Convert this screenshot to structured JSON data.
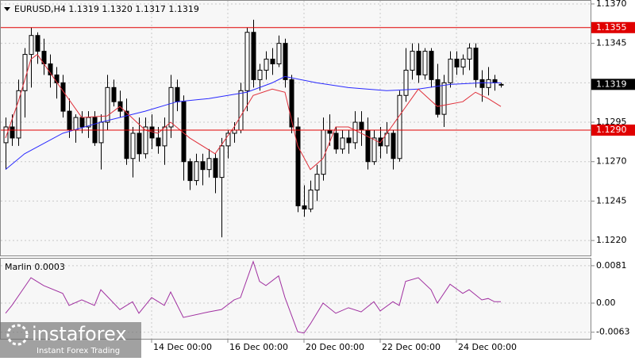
{
  "chart_data": [
    {
      "type": "candlestick",
      "title": "EURUSD,H4  1.1319 1.1320 1.1317 1.1319",
      "categories": [
        null,
        null,
        null,
        null,
        null,
        null,
        null,
        null,
        null,
        null,
        null,
        null,
        null,
        null,
        null,
        null,
        null,
        null,
        null,
        null,
        null,
        null,
        null,
        "14 Dec 00:00",
        null,
        null,
        null,
        null,
        null,
        null,
        null,
        null,
        null,
        null,
        null,
        "16 Dec 00:00",
        null,
        null,
        null,
        null,
        null,
        null,
        null,
        null,
        null,
        null,
        null,
        "20 Dec 00:00",
        null,
        null,
        null,
        null,
        null,
        null,
        null,
        null,
        null,
        null,
        null,
        "22 Dec 00:00",
        null,
        null,
        null,
        null,
        null,
        null,
        null,
        null,
        null,
        null,
        null,
        "24 Dec 00:00",
        null,
        null,
        null,
        null,
        null,
        null,
        null
      ],
      "open": [
        1.1282,
        1.1292,
        1.1285,
        1.1315,
        1.1338,
        1.135,
        1.134,
        1.1332,
        1.1325,
        1.132,
        1.1302,
        1.129,
        1.1298,
        1.1292,
        1.1298,
        1.1282,
        1.1295,
        1.1317,
        1.1308,
        1.1302,
        1.1272,
        1.1288,
        1.1275,
        1.1292,
        1.1285,
        1.128,
        1.1292,
        1.1317,
        1.1308,
        1.127,
        1.1258,
        1.127,
        1.1265,
        1.1272,
        1.126,
        1.128,
        1.1288,
        1.129,
        1.1315,
        1.1352,
        1.1322,
        1.1328,
        1.1335,
        1.1332,
        1.1345,
        1.1322,
        1.1292,
        1.1242,
        1.124,
        1.1252,
        1.1262,
        1.129,
        1.1288,
        1.1278,
        1.1285,
        1.1282,
        1.1295,
        1.129,
        1.127,
        1.1285,
        1.128,
        1.1288,
        1.1272,
        1.1312,
        1.1328,
        1.134,
        1.1325,
        1.134,
        1.1322,
        1.13,
        1.132,
        1.1335,
        1.133,
        1.1335,
        1.1342,
        1.1322,
        1.1317,
        1.1322,
        1.1319
      ],
      "high": [
        1.1298,
        1.13,
        1.1322,
        1.1342,
        1.1355,
        1.1352,
        1.1348,
        1.1338,
        1.133,
        1.1325,
        1.131,
        1.13,
        1.1302,
        1.1302,
        1.1302,
        1.13,
        1.1325,
        1.1322,
        1.1315,
        1.131,
        1.1292,
        1.1298,
        1.1298,
        1.13,
        1.1292,
        1.1298,
        1.1325,
        1.1322,
        1.1312,
        1.1272,
        1.1275,
        1.1275,
        1.1278,
        1.1275,
        1.1285,
        1.129,
        1.1295,
        1.132,
        1.1355,
        1.136,
        1.1332,
        1.134,
        1.1342,
        1.135,
        1.1348,
        1.1325,
        1.1298,
        1.1255,
        1.1258,
        1.1268,
        1.1298,
        1.13,
        1.1292,
        1.129,
        1.129,
        1.1302,
        1.1302,
        1.1298,
        1.129,
        1.1292,
        1.1295,
        1.129,
        1.1315,
        1.1342,
        1.1345,
        1.1345,
        1.1342,
        1.1342,
        1.1332,
        1.1325,
        1.134,
        1.134,
        1.1338,
        1.1345,
        1.1345,
        1.1328,
        1.133,
        1.1325,
        1.132
      ],
      "low": [
        1.1265,
        1.128,
        1.128,
        1.1298,
        1.1317,
        1.1332,
        1.1325,
        1.1317,
        1.131,
        1.1298,
        1.1285,
        1.1282,
        1.1288,
        1.1285,
        1.128,
        1.1265,
        1.129,
        1.1305,
        1.1298,
        1.1268,
        1.126,
        1.127,
        1.1272,
        1.1278,
        1.1275,
        1.1268,
        1.1285,
        1.1302,
        1.1258,
        1.1252,
        1.1255,
        1.1255,
        1.126,
        1.125,
        1.1222,
        1.1272,
        1.1282,
        1.1288,
        1.1302,
        1.1317,
        1.1315,
        1.1322,
        1.1325,
        1.133,
        1.1317,
        1.1288,
        1.1238,
        1.1235,
        1.1238,
        1.1245,
        1.1258,
        1.128,
        1.1275,
        1.1275,
        1.1275,
        1.1278,
        1.128,
        1.1265,
        1.1268,
        1.1272,
        1.1275,
        1.1265,
        1.127,
        1.1308,
        1.1322,
        1.132,
        1.1322,
        1.1317,
        1.1298,
        1.1292,
        1.1317,
        1.1325,
        1.1325,
        1.1328,
        1.1317,
        1.1308,
        1.1312,
        1.1315,
        1.1317
      ],
      "close": [
        1.1292,
        1.1285,
        1.1315,
        1.1338,
        1.135,
        1.134,
        1.1332,
        1.1325,
        1.132,
        1.1302,
        1.129,
        1.1298,
        1.1292,
        1.1298,
        1.1282,
        1.1295,
        1.1317,
        1.1308,
        1.1302,
        1.1272,
        1.1288,
        1.1275,
        1.1292,
        1.1285,
        1.128,
        1.1292,
        1.1317,
        1.1308,
        1.127,
        1.1258,
        1.127,
        1.1265,
        1.1272,
        1.126,
        1.128,
        1.1288,
        1.129,
        1.1315,
        1.1352,
        1.1322,
        1.1328,
        1.1335,
        1.1332,
        1.1345,
        1.1322,
        1.1292,
        1.1242,
        1.124,
        1.1252,
        1.1262,
        1.129,
        1.1288,
        1.1278,
        1.1285,
        1.1282,
        1.1295,
        1.129,
        1.127,
        1.1285,
        1.128,
        1.1288,
        1.1272,
        1.1312,
        1.1328,
        1.134,
        1.1325,
        1.134,
        1.1322,
        1.13,
        1.132,
        1.1335,
        1.133,
        1.1335,
        1.1342,
        1.1322,
        1.1317,
        1.1322,
        1.132,
        1.1319
      ],
      "series": [
        {
          "color": "#2a2aff",
          "x": [
            0,
            3,
            9,
            15,
            22,
            27,
            32,
            38,
            42,
            44,
            49,
            54,
            60,
            65,
            70,
            75,
            78
          ],
          "values": [
            1.1265,
            1.1275,
            1.1288,
            1.1295,
            1.1302,
            1.1308,
            1.131,
            1.1314,
            1.132,
            1.1324,
            1.132,
            1.1317,
            1.1315,
            1.1316,
            1.1319,
            1.132,
            1.132
          ]
        },
        {
          "color": "#e0303a",
          "x": [
            0,
            2,
            4,
            5,
            9,
            12,
            16,
            18,
            22,
            24,
            26,
            29,
            33,
            36,
            39,
            42,
            44,
            46,
            48,
            50,
            52,
            54,
            56,
            59,
            62,
            65,
            68,
            72,
            74,
            76,
            78
          ],
          "values": [
            1.1285,
            1.1308,
            1.1335,
            1.1338,
            1.1315,
            1.1298,
            1.1299,
            1.1305,
            1.129,
            1.1288,
            1.1295,
            1.1285,
            1.1275,
            1.1292,
            1.1312,
            1.1316,
            1.1314,
            1.128,
            1.1265,
            1.1272,
            1.1292,
            1.1292,
            1.1288,
            1.1282,
            1.1299,
            1.1316,
            1.1305,
            1.1308,
            1.1314,
            1.131,
            1.1305
          ]
        }
      ],
      "levels": [
        {
          "value": 1.1355,
          "label": "1.1355"
        },
        {
          "value": 1.129,
          "label": "1.1290"
        }
      ],
      "level_color": "#e00000",
      "ylim": [
        1.121,
        1.13725
      ],
      "yticks": [
        {
          "value": 1.137,
          "label": "1.1370"
        },
        1.1345,
        {
          "value": 1.132,
          "label": "1.1320"
        },
        1.1295,
        {
          "value": 1.127,
          "label": "1.1270"
        },
        1.1245,
        {
          "value": 1.122,
          "label": "1.1220"
        }
      ],
      "grid": true,
      "watermark": "instaforex",
      "watermark_sub": "Instant Forex Trading"
    },
    {
      "type": "line",
      "title": "Marlin 0.0003",
      "series": [
        {
          "color": "#a030a0",
          "x": [
            0,
            1,
            4,
            6,
            9,
            10,
            12,
            14,
            15,
            18,
            20,
            21,
            23,
            25,
            26,
            28,
            32,
            34,
            36,
            37,
            39,
            40,
            41,
            43,
            44,
            46,
            47,
            48,
            50,
            52,
            54,
            56,
            58,
            59,
            61,
            62,
            63,
            65,
            67,
            68,
            70,
            72,
            73,
            75,
            76,
            77,
            78
          ],
          "values": [
            -0.0022,
            -0.0005,
            0.0055,
            0.0038,
            0.0021,
            -0.0005,
            0.0007,
            -0.0005,
            0.0029,
            -0.0014,
            0.0003,
            -0.0022,
            0.0012,
            -0.0005,
            0.0024,
            -0.0031,
            -0.0019,
            -0.0014,
            0.0007,
            0.0012,
            0.009,
            0.0047,
            0.0038,
            0.0059,
            0.0012,
            -0.0062,
            -0.0065,
            -0.0045,
            0,
            -0.0022,
            -0.001,
            -0.0019,
            0.0003,
            -0.0017,
            0.0003,
            -0.0005,
            0.0047,
            0.0055,
            0.0029,
            0,
            0.0041,
            0.0021,
            0.0029,
            0.0007,
            0.001,
            0.0003,
            0.0003
          ]
        }
      ],
      "ylim": [
        -0.0079,
        0.0098
      ],
      "yticks": [
        0.0081,
        {
          "value": 0,
          "label": "0.00"
        },
        -0.0063
      ],
      "grid": true
    }
  ]
}
